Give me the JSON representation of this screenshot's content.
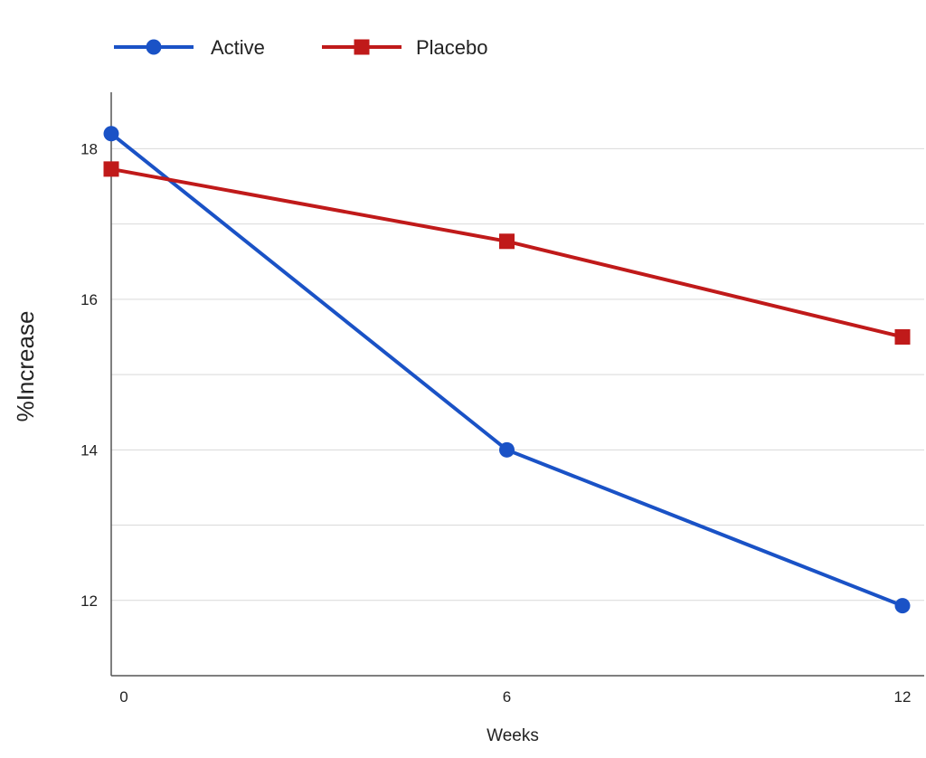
{
  "chart_data": {
    "type": "line",
    "x": [
      0,
      6,
      12
    ],
    "series": [
      {
        "name": "Active",
        "values": [
          18.2,
          14.0,
          11.93
        ],
        "color": "#1a52c6",
        "marker": "circle"
      },
      {
        "name": "Placebo",
        "values": [
          17.73,
          16.77,
          15.5
        ],
        "color": "#c01a1a",
        "marker": "square"
      }
    ],
    "xlabel": "Weeks",
    "ylabel": "%Increase",
    "xticks": [
      "0",
      "6",
      "12"
    ],
    "yticks": [
      "12",
      "14",
      "16",
      "18"
    ],
    "xlim": [
      0,
      12
    ],
    "ylim": [
      11,
      18.75
    ],
    "grid": true,
    "legend_position": "top-left"
  }
}
